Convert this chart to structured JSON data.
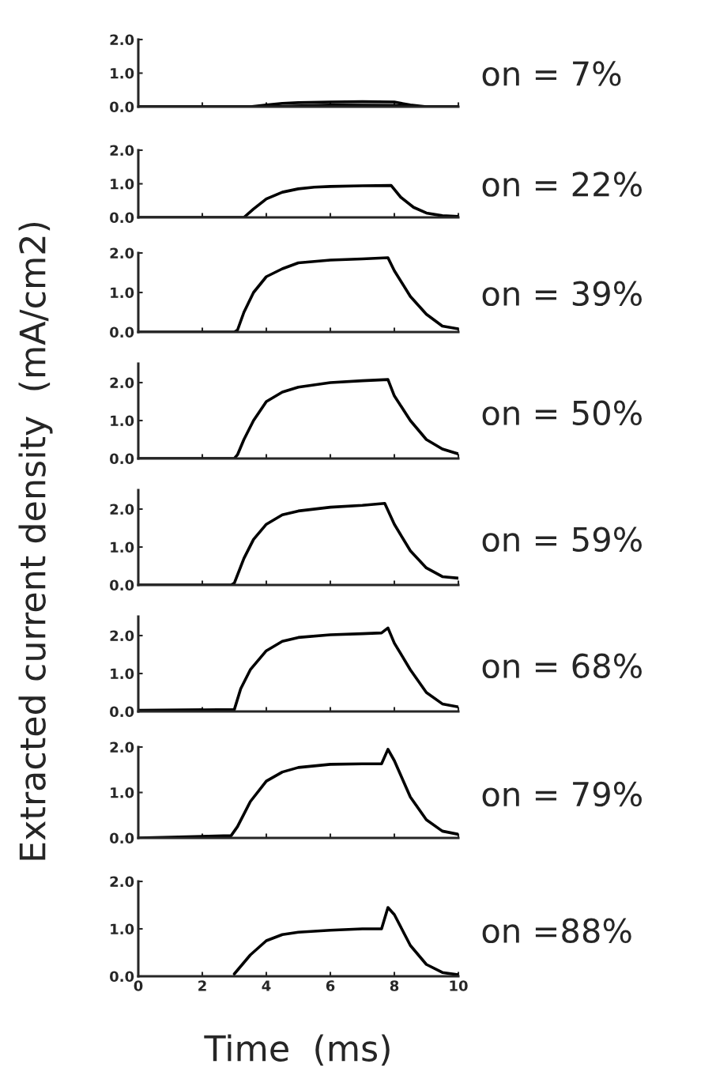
{
  "chart_data": [
    {
      "type": "line",
      "ylabel": "Extracted current density  (mA/cm2)",
      "xlim": [
        0,
        10
      ],
      "xticks": [
        0,
        2,
        4,
        6,
        8,
        10
      ],
      "ylim": [
        0,
        2
      ],
      "yticks": [
        {
          "value": 0,
          "label": "0.0"
        },
        {
          "value": 1,
          "label": "1.0"
        },
        {
          "value": 2,
          "label": "2.0"
        }
      ],
      "tick_labels": "y",
      "annotations": [
        "on = 7%"
      ],
      "series": [
        {
          "color": "#000000",
          "x": [
            0,
            3.5,
            4,
            4.5,
            5,
            6,
            7,
            8,
            8.5,
            9,
            10
          ],
          "values": [
            0,
            0,
            0.05,
            0.1,
            0.12,
            0.14,
            0.15,
            0.14,
            0.05,
            0,
            0
          ]
        },
        {
          "color": "#000000",
          "x": [
            0,
            4,
            6,
            8,
            8.7,
            10
          ],
          "values": [
            0,
            0,
            0.05,
            0.04,
            0,
            0
          ]
        }
      ]
    },
    {
      "type": "line",
      "xlim": [
        0,
        10
      ],
      "xticks": [
        0,
        2,
        4,
        6,
        8,
        10
      ],
      "ylim": [
        0,
        2
      ],
      "yticks": [
        {
          "value": 0,
          "label": "0.0"
        },
        {
          "value": 1,
          "label": "1.0"
        },
        {
          "value": 2,
          "label": "2.0"
        }
      ],
      "tick_labels": "y",
      "annotations": [
        "on = 22%"
      ],
      "series": [
        {
          "color": "#000000",
          "x": [
            0,
            3.3,
            3.6,
            4,
            4.5,
            5,
            5.5,
            6,
            7,
            7.9,
            8.2,
            8.6,
            9,
            9.5,
            10
          ],
          "values": [
            0,
            0,
            0.25,
            0.55,
            0.75,
            0.85,
            0.9,
            0.92,
            0.94,
            0.95,
            0.6,
            0.3,
            0.13,
            0.05,
            0.03
          ]
        }
      ]
    },
    {
      "type": "line",
      "xlim": [
        0,
        10
      ],
      "xticks": [
        0,
        2,
        4,
        6,
        8,
        10
      ],
      "ylim": [
        0,
        2
      ],
      "yticks": [
        {
          "value": 0,
          "label": "0.0"
        },
        {
          "value": 1,
          "label": "1.0"
        },
        {
          "value": 2,
          "label": "2.0"
        }
      ],
      "tick_labels": "y",
      "annotations": [
        "on = 39%"
      ],
      "series": [
        {
          "color": "#000000",
          "x": [
            0,
            3.0,
            3.1,
            3.3,
            3.6,
            4,
            4.5,
            5,
            6,
            7,
            7.8,
            8,
            8.5,
            9,
            9.5,
            10
          ],
          "values": [
            0,
            0,
            0.05,
            0.5,
            1.0,
            1.4,
            1.6,
            1.75,
            1.82,
            1.85,
            1.88,
            1.55,
            0.9,
            0.45,
            0.15,
            0.08
          ]
        }
      ]
    },
    {
      "type": "line",
      "xlim": [
        0,
        10
      ],
      "xticks": [
        0,
        2,
        4,
        6,
        8,
        10
      ],
      "ylim": [
        0,
        2.5
      ],
      "yticks": [
        {
          "value": 0,
          "label": "0.0"
        },
        {
          "value": 1,
          "label": "1.0"
        },
        {
          "value": 2,
          "label": "2.0"
        }
      ],
      "tick_labels": "y",
      "annotations": [
        "on = 50%"
      ],
      "series": [
        {
          "color": "#000000",
          "x": [
            0,
            3.0,
            3.1,
            3.3,
            3.6,
            4,
            4.5,
            5,
            6,
            7,
            7.8,
            8,
            8.5,
            9,
            9.5,
            10
          ],
          "values": [
            0,
            0,
            0.1,
            0.5,
            1.0,
            1.5,
            1.75,
            1.88,
            2.0,
            2.05,
            2.08,
            1.65,
            1.0,
            0.5,
            0.25,
            0.12
          ]
        }
      ]
    },
    {
      "type": "line",
      "xlim": [
        0,
        10
      ],
      "xticks": [
        0,
        2,
        4,
        6,
        8,
        10
      ],
      "ylim": [
        0,
        2.5
      ],
      "yticks": [
        {
          "value": 0,
          "label": "0.0"
        },
        {
          "value": 1,
          "label": "1.0"
        },
        {
          "value": 2,
          "label": "2.0"
        }
      ],
      "tick_labels": "y",
      "annotations": [
        "on = 59%"
      ],
      "series": [
        {
          "color": "#000000",
          "x": [
            0,
            2.9,
            3.0,
            3.3,
            3.6,
            4,
            4.5,
            5,
            6,
            7,
            7.7,
            8,
            8.5,
            9,
            9.5,
            10
          ],
          "values": [
            0,
            0,
            0.05,
            0.7,
            1.2,
            1.6,
            1.85,
            1.95,
            2.05,
            2.1,
            2.15,
            1.6,
            0.9,
            0.45,
            0.22,
            0.18
          ]
        }
      ]
    },
    {
      "type": "line",
      "xlim": [
        0,
        10
      ],
      "xticks": [
        0,
        2,
        4,
        6,
        8,
        10
      ],
      "ylim": [
        0,
        2.5
      ],
      "yticks": [
        {
          "value": 0,
          "label": "0.0"
        },
        {
          "value": 1,
          "label": "1.0"
        },
        {
          "value": 2,
          "label": "2.0"
        }
      ],
      "tick_labels": "y",
      "annotations": [
        "on = 68%"
      ],
      "series": [
        {
          "color": "#000000",
          "x": [
            0,
            3.0,
            3.2,
            3.5,
            4,
            4.5,
            5,
            6,
            7,
            7.6,
            7.8,
            8,
            8.5,
            9,
            9.5,
            10
          ],
          "values": [
            0.03,
            0.05,
            0.6,
            1.1,
            1.6,
            1.85,
            1.95,
            2.02,
            2.05,
            2.07,
            2.2,
            1.8,
            1.1,
            0.5,
            0.2,
            0.12
          ]
        }
      ]
    },
    {
      "type": "line",
      "xlim": [
        0,
        10
      ],
      "xticks": [
        0,
        2,
        4,
        6,
        8,
        10
      ],
      "ylim": [
        0,
        2
      ],
      "yticks": [
        {
          "value": 0,
          "label": "0.0"
        },
        {
          "value": 1,
          "label": "1.0"
        },
        {
          "value": 2,
          "label": "2.0"
        }
      ],
      "tick_labels": "y",
      "annotations": [
        "on = 79%"
      ],
      "series": [
        {
          "color": "#000000",
          "x": [
            0,
            2.9,
            3.1,
            3.5,
            4,
            4.5,
            5,
            6,
            7,
            7.6,
            7.8,
            8,
            8.5,
            9,
            9.5,
            10
          ],
          "values": [
            0,
            0.05,
            0.25,
            0.8,
            1.25,
            1.45,
            1.55,
            1.62,
            1.63,
            1.63,
            1.95,
            1.7,
            0.9,
            0.4,
            0.15,
            0.08
          ]
        }
      ]
    },
    {
      "type": "line",
      "xlabel": "Time  (ms)",
      "xlim": [
        0,
        10
      ],
      "xticks": [
        0,
        2,
        4,
        6,
        8,
        10
      ],
      "ylim": [
        0,
        2
      ],
      "yticks": [
        {
          "value": 0,
          "label": "0.0"
        },
        {
          "value": 1,
          "label": "1.0"
        },
        {
          "value": 2,
          "label": "2.0"
        }
      ],
      "annotations": [
        "on =88%"
      ],
      "series": [
        {
          "color": "#000000",
          "x": [
            3.0,
            3.5,
            4,
            4.5,
            5,
            6,
            7,
            7.6,
            7.8,
            8,
            8.5,
            9,
            9.5,
            10
          ],
          "values": [
            0.05,
            0.45,
            0.75,
            0.88,
            0.93,
            0.97,
            1.0,
            1.0,
            1.45,
            1.3,
            0.65,
            0.25,
            0.08,
            0.03
          ]
        }
      ]
    }
  ]
}
